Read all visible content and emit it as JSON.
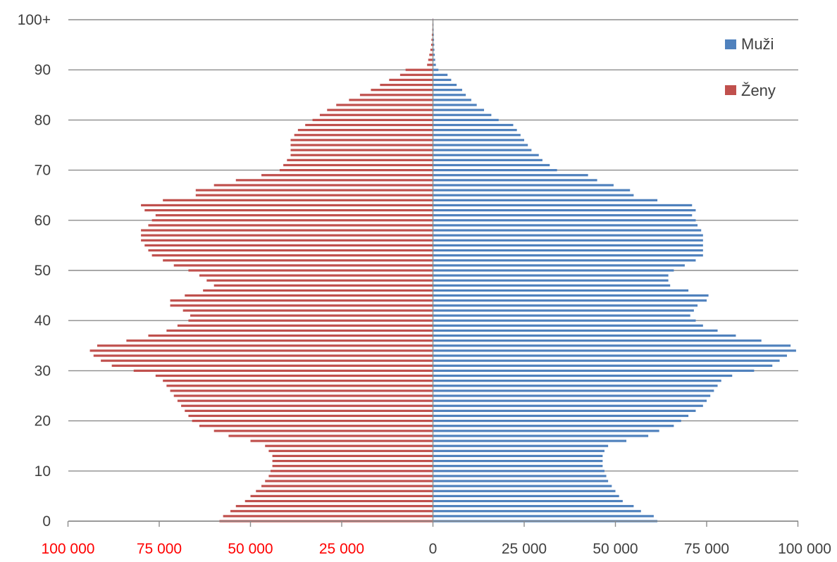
{
  "chart_data": {
    "type": "bar",
    "orientation": "horizontal",
    "title": "",
    "xlabel": "",
    "ylabel": "",
    "xlim": [
      -100000,
      100000
    ],
    "y_ticks": [
      "0",
      "10",
      "20",
      "30",
      "40",
      "50",
      "60",
      "70",
      "80",
      "90",
      "100+"
    ],
    "x_ticks_left": [
      "100 000",
      "75 000",
      "50 000",
      "25 000"
    ],
    "x_tick_zero": "0",
    "x_ticks_right": [
      "25 000",
      "50 000",
      "75 000",
      "100 000"
    ],
    "grid": "horizontal",
    "legend_position": "top-right",
    "colors": {
      "men": "#4f81bd",
      "women": "#c0504d",
      "left_tick_color": "#ff0000",
      "right_tick_color": "#404040"
    },
    "categories": [
      "0",
      "1",
      "2",
      "3",
      "4",
      "5",
      "6",
      "7",
      "8",
      "9",
      "10",
      "11",
      "12",
      "13",
      "14",
      "15",
      "16",
      "17",
      "18",
      "19",
      "20",
      "21",
      "22",
      "23",
      "24",
      "25",
      "26",
      "27",
      "28",
      "29",
      "30",
      "31",
      "32",
      "33",
      "34",
      "35",
      "36",
      "37",
      "38",
      "39",
      "40",
      "41",
      "42",
      "43",
      "44",
      "45",
      "46",
      "47",
      "48",
      "49",
      "50",
      "51",
      "52",
      "53",
      "54",
      "55",
      "56",
      "57",
      "58",
      "59",
      "60",
      "61",
      "62",
      "63",
      "64",
      "65",
      "66",
      "67",
      "68",
      "69",
      "70",
      "71",
      "72",
      "73",
      "74",
      "75",
      "76",
      "77",
      "78",
      "79",
      "80",
      "81",
      "82",
      "83",
      "84",
      "85",
      "86",
      "87",
      "88",
      "89",
      "90",
      "91",
      "92",
      "93",
      "94",
      "95",
      "96",
      "97",
      "98",
      "99",
      "100+"
    ],
    "series": [
      {
        "name": "Muži",
        "values": [
          61500,
          60500,
          57000,
          55000,
          52000,
          51000,
          50000,
          49000,
          48000,
          47500,
          47000,
          46500,
          46500,
          46500,
          47000,
          48000,
          53000,
          59000,
          62000,
          66000,
          68000,
          70000,
          72000,
          74000,
          75000,
          76000,
          77000,
          78000,
          79000,
          82000,
          88000,
          93000,
          95000,
          97000,
          99500,
          98000,
          90000,
          83000,
          78000,
          74000,
          72000,
          70500,
          71500,
          72500,
          75000,
          75500,
          70000,
          65000,
          64500,
          64500,
          66000,
          69000,
          72000,
          74000,
          74000,
          74000,
          74000,
          74000,
          73500,
          72500,
          72000,
          71000,
          72000,
          71000,
          61500,
          55000,
          54000,
          49500,
          45000,
          42500,
          34000,
          32000,
          30000,
          29000,
          27000,
          26000,
          25000,
          24000,
          23000,
          22000,
          18000,
          16000,
          14000,
          12000,
          10500,
          9000,
          8000,
          6500,
          5000,
          4000,
          1500,
          800,
          600,
          500,
          400,
          350,
          300,
          250,
          200,
          150,
          100
        ]
      },
      {
        "name": "Ženy",
        "values": [
          58500,
          57500,
          55500,
          54000,
          51500,
          50000,
          48500,
          47000,
          46000,
          45000,
          44500,
          44000,
          44000,
          44000,
          45000,
          46000,
          50000,
          56000,
          60000,
          64000,
          66000,
          67000,
          68000,
          69000,
          70000,
          71000,
          72000,
          73000,
          74000,
          76000,
          82000,
          88000,
          91000,
          93000,
          94000,
          92000,
          84000,
          78000,
          73000,
          70000,
          67000,
          66500,
          68500,
          72000,
          72000,
          68000,
          63000,
          60000,
          62000,
          64000,
          67000,
          71000,
          74000,
          77000,
          78000,
          79000,
          80000,
          80000,
          80000,
          78000,
          77000,
          76000,
          79000,
          80000,
          74000,
          65000,
          65000,
          60000,
          54000,
          47000,
          42000,
          41000,
          40000,
          39000,
          39000,
          39000,
          39000,
          38000,
          37000,
          35000,
          33000,
          31000,
          29000,
          26500,
          23000,
          20000,
          17000,
          14500,
          12000,
          9000,
          7500,
          1600,
          1300,
          1000,
          700,
          500,
          400,
          300,
          200,
          150,
          100
        ]
      }
    ]
  }
}
